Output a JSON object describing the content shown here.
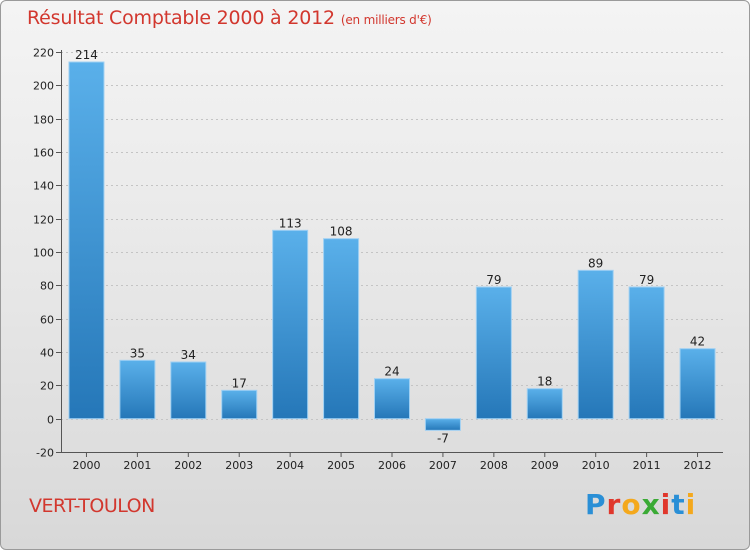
{
  "chart_data": {
    "type": "bar",
    "title": "Résultat Comptable 2000 à 2012",
    "subtitle": "(en milliers d'€)",
    "categories": [
      "2000",
      "2001",
      "2002",
      "2003",
      "2004",
      "2005",
      "2006",
      "2007",
      "2008",
      "2009",
      "2010",
      "2011",
      "2012"
    ],
    "values": [
      214,
      35,
      34,
      17,
      113,
      108,
      24,
      -7,
      79,
      18,
      89,
      79,
      42
    ],
    "yticks": [
      -20,
      0,
      20,
      40,
      60,
      80,
      100,
      120,
      140,
      160,
      180,
      200,
      220
    ],
    "ylim": [
      -20,
      220
    ],
    "grid": true,
    "xlabel": "",
    "ylabel": ""
  },
  "footer": {
    "location": "VERT-TOULON",
    "logo": "Proxiti"
  },
  "colors": {
    "title": "#d2372e",
    "bar_light": "#5ab0ea",
    "bar_dark": "#2577b8",
    "logo": [
      "#2a8fd6",
      "#e0372c",
      "#f4a81c",
      "#3aaa35",
      "#e0372c",
      "#2a8fd6",
      "#f4a81c"
    ]
  }
}
